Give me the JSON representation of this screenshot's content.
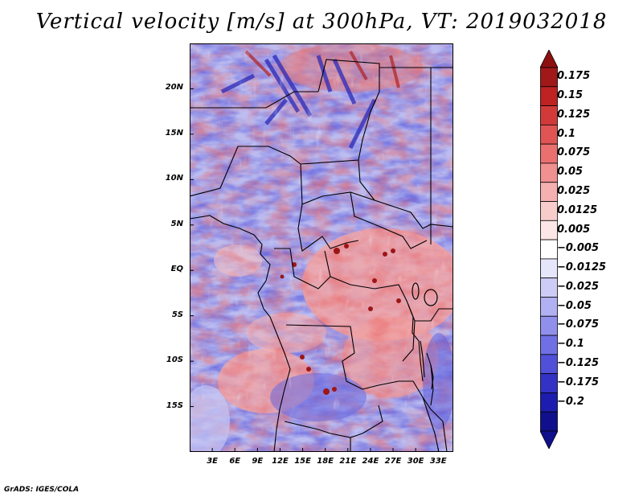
{
  "title": "Vertical velocity [m/s] at 300hPa, VT: 2019032018",
  "credit": "GrADS: IGES/COLA",
  "map": {
    "lon_range": [
      0,
      35
    ],
    "lat_range": [
      -20,
      25
    ],
    "variable": "vertical velocity",
    "units": "m/s",
    "level": "300hPa",
    "valid_time": "2019032018"
  },
  "axes": {
    "y_ticks": [
      {
        "label": "20N",
        "lat": 20
      },
      {
        "label": "15N",
        "lat": 15
      },
      {
        "label": "10N",
        "lat": 10
      },
      {
        "label": "5N",
        "lat": 5
      },
      {
        "label": "EQ",
        "lat": 0
      },
      {
        "label": "5S",
        "lat": -5
      },
      {
        "label": "10S",
        "lat": -10
      },
      {
        "label": "15S",
        "lat": -15
      }
    ],
    "x_ticks": [
      {
        "label": "3E",
        "lon": 3
      },
      {
        "label": "6E",
        "lon": 6
      },
      {
        "label": "9E",
        "lon": 9
      },
      {
        "label": "12E",
        "lon": 12
      },
      {
        "label": "15E",
        "lon": 15
      },
      {
        "label": "18E",
        "lon": 18
      },
      {
        "label": "21E",
        "lon": 21
      },
      {
        "label": "24E",
        "lon": 24
      },
      {
        "label": "27E",
        "lon": 27
      },
      {
        "label": "30E",
        "lon": 30
      },
      {
        "label": "33E",
        "lon": 33
      }
    ]
  },
  "colorbar": {
    "levels": [
      {
        "label": "0.175",
        "color": "#a01818"
      },
      {
        "label": "0.15",
        "color": "#be2222"
      },
      {
        "label": "0.125",
        "color": "#d23a3a"
      },
      {
        "label": "0.1",
        "color": "#e05454"
      },
      {
        "label": "0.075",
        "color": "#ea7070"
      },
      {
        "label": "0.05",
        "color": "#f09090"
      },
      {
        "label": "0.025",
        "color": "#f5b0b0"
      },
      {
        "label": "0.0125",
        "color": "#f9cccc"
      },
      {
        "label": "0.005",
        "color": "#fce6e6"
      },
      {
        "label": "−0.005",
        "color": "#ffffff"
      },
      {
        "label": "−0.0125",
        "color": "#e6e6fa"
      },
      {
        "label": "−0.025",
        "color": "#ccccf6"
      },
      {
        "label": "−0.05",
        "color": "#b0b0f2"
      },
      {
        "label": "−0.075",
        "color": "#9090ec"
      },
      {
        "label": "−0.1",
        "color": "#7070e4"
      },
      {
        "label": "−0.125",
        "color": "#5050d8"
      },
      {
        "label": "−0.175",
        "color": "#3232c4"
      },
      {
        "label": "−0.2",
        "color": "#1c1cae"
      }
    ],
    "top_triangle_color": "#8c1010",
    "bottom_triangle_color": "#10108c"
  }
}
